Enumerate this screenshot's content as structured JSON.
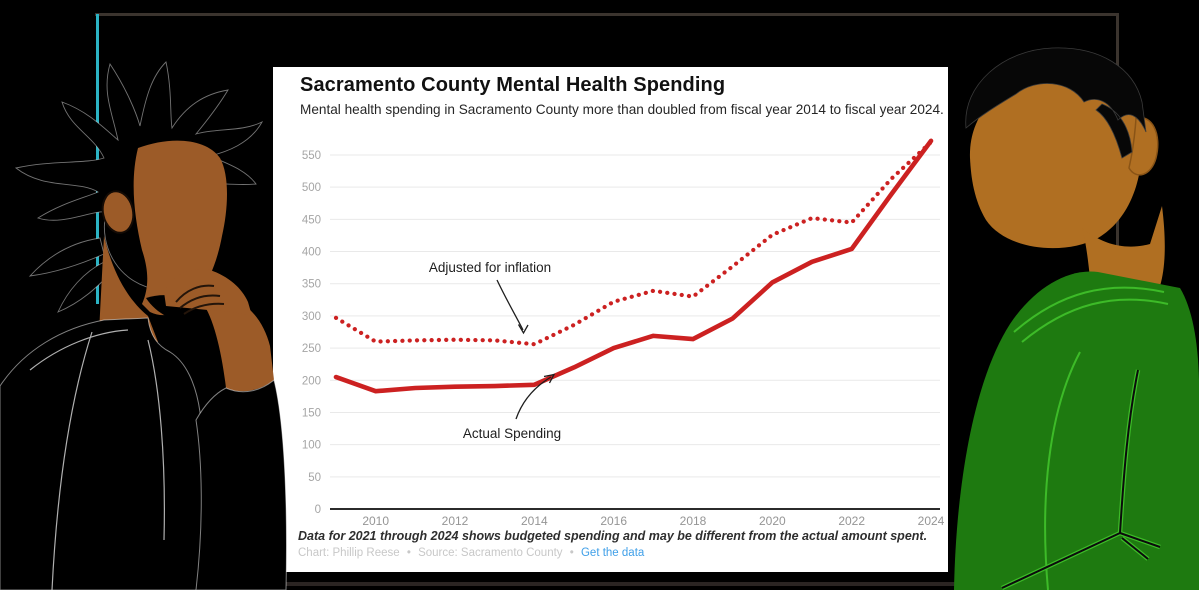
{
  "card": {
    "title": "Sacramento County Mental Health Spending",
    "subtitle": "Mental health spending in Sacramento County more than doubled from fiscal year 2014 to fiscal year 2024.",
    "note": "Data for 2021 through 2024 shows budgeted spending and may be different from the actual amount spent.",
    "credit_chart": "Chart: Phillip Reese",
    "credit_source": "Source: Sacramento County",
    "credit_link": "Get the data",
    "separator": "•"
  },
  "colors": {
    "line_red": "#cc2121",
    "link_blue": "#3f9fe8",
    "teal_accent": "#2bb3c4",
    "frame_gray": "#3b342e",
    "left_person_skin": "#9c5b28",
    "right_person_skin": "#b06f22",
    "right_person_jacket": "#1e7a10",
    "jacket_seam_green": "#3dbb28",
    "card_background": "#ffffff"
  },
  "chart_data": {
    "type": "line",
    "title": "Sacramento County Mental Health Spending",
    "subtitle": "Mental health spending in Sacramento County more than doubled from fiscal year 2014 to fiscal year 2024.",
    "x": [
      2009,
      2010,
      2011,
      2012,
      2013,
      2014,
      2015,
      2016,
      2017,
      2018,
      2019,
      2020,
      2021,
      2022,
      2023,
      2024
    ],
    "series": [
      {
        "name": "Actual Spending",
        "line_style": "solid",
        "values": [
          205,
          183,
          188,
          190,
          191,
          193,
          220,
          250,
          269,
          264,
          296,
          352,
          384,
          404,
          489,
          572
        ]
      },
      {
        "name": "Adjusted for inflation",
        "line_style": "dotted",
        "values": [
          297,
          260,
          262,
          263,
          262,
          256,
          286,
          322,
          339,
          330,
          377,
          426,
          452,
          445,
          513,
          570
        ]
      }
    ],
    "annotations": [
      {
        "label": "Adjusted for inflation",
        "series": "Adjusted for inflation",
        "target_year": 2014
      },
      {
        "label": "Actual Spending",
        "series": "Actual Spending",
        "target_year": 2014
      }
    ],
    "xticks": [
      2010,
      2012,
      2014,
      2016,
      2018,
      2020,
      2022,
      2024
    ],
    "ylim": [
      0,
      550
    ],
    "ytick_step": 50,
    "xlabel": "",
    "ylabel": "",
    "grid": true,
    "legend": "inline-annotations",
    "line_color": "#cc2121"
  }
}
